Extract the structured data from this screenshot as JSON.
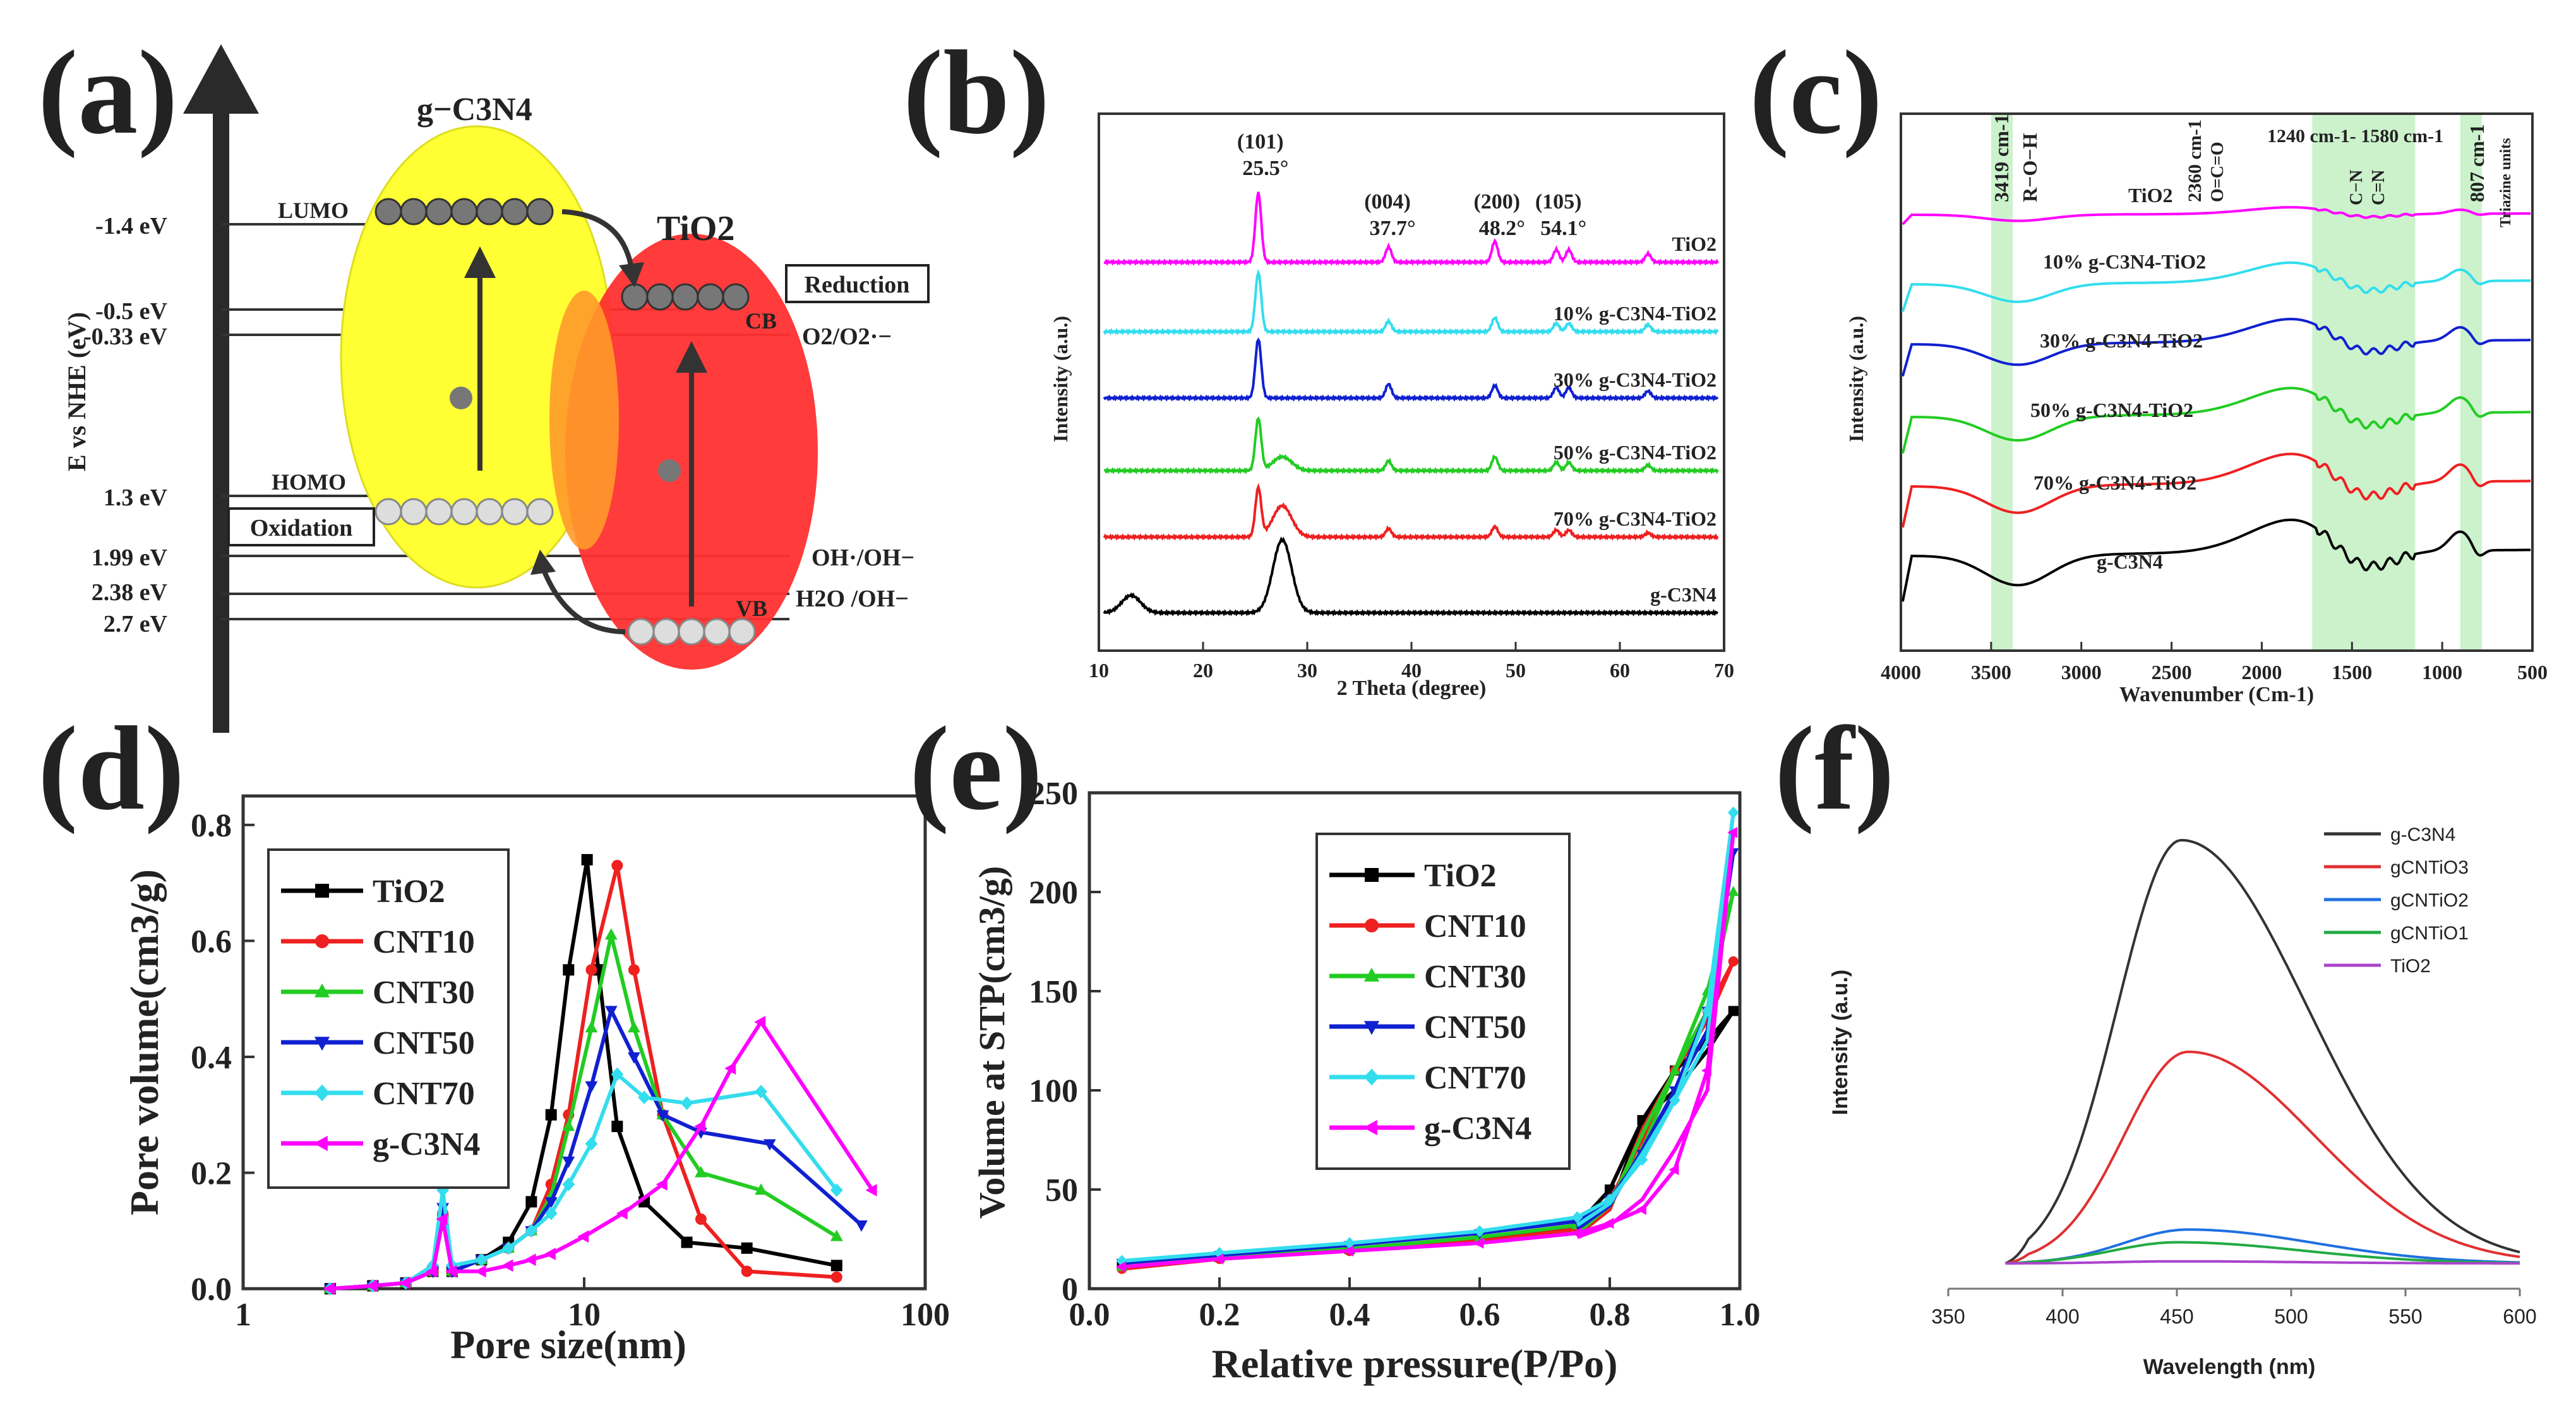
{
  "panels": {
    "a": {
      "letter": "(a)",
      "y_axis_label": "E vs NHE (eV)",
      "energy_levels": [
        {
          "label": "-1.4 eV",
          "value": -1.4
        },
        {
          "label": "-0.5 eV",
          "value": -0.5
        },
        {
          "label": "-0.33 eV",
          "value": -0.33
        },
        {
          "label": "1.3 eV",
          "value": 1.3
        },
        {
          "label": "1.99 eV",
          "value": 1.99
        },
        {
          "label": "2.38 eV",
          "value": 2.38
        },
        {
          "label": "2.7 eV",
          "value": 2.7
        }
      ],
      "gcn_label": "g−C3N4",
      "tio2_label": "TiO2",
      "lumo_label": "LUMO",
      "homo_label": "HOMO",
      "cb_label": "CB",
      "vb_label": "VB",
      "reduction_label": "Reduction",
      "oxidation_label": "Oxidation",
      "o2_label": "O2/O2·−",
      "oh_label": "OH·/OH−",
      "h2o_label": "H2O /OH−",
      "colors": {
        "gcn": "#ffff33",
        "tio2": "#ff3030",
        "axis": "#333333"
      }
    },
    "b": {
      "letter": "(b)",
      "chart_data": {
        "type": "line",
        "title": "",
        "xlabel": "2 Theta (degree)",
        "ylabel": "Intensity (a.u.)",
        "xlim": [
          10,
          70
        ],
        "xticks": [
          10,
          20,
          30,
          40,
          50,
          60,
          70
        ],
        "series": [
          {
            "name": "TiO2",
            "label": "TiO2",
            "color": "#ff00ff",
            "peaks": [
              [
                25.3,
                1.0
              ],
              [
                37.8,
                0.22
              ],
              [
                48.0,
                0.3
              ],
              [
                53.9,
                0.18
              ],
              [
                55.1,
                0.18
              ],
              [
                62.7,
                0.12
              ]
            ]
          },
          {
            "name": "10% g-C3N4-TiO2",
            "label": "10% g-C3N4-TiO2",
            "color": "#33ddee",
            "peaks": [
              [
                25.3,
                0.85
              ],
              [
                37.8,
                0.15
              ],
              [
                48.0,
                0.2
              ],
              [
                53.9,
                0.12
              ],
              [
                55.1,
                0.12
              ],
              [
                62.7,
                0.1
              ]
            ]
          },
          {
            "name": "30% g-C3N4-TiO2",
            "label": "30% g-C3N4-TiO2",
            "color": "#1020d0",
            "peaks": [
              [
                25.3,
                0.85
              ],
              [
                37.8,
                0.2
              ],
              [
                48.0,
                0.18
              ],
              [
                53.9,
                0.15
              ],
              [
                55.1,
                0.15
              ],
              [
                62.7,
                0.1
              ]
            ]
          },
          {
            "name": "50% g-C3N4-TiO2",
            "label": "50% g-C3N4-TiO2",
            "color": "#22cc22",
            "peaks": [
              [
                25.3,
                0.75
              ],
              [
                27.6,
                0.2
              ],
              [
                37.8,
                0.14
              ],
              [
                48.0,
                0.2
              ],
              [
                53.9,
                0.12
              ],
              [
                55.1,
                0.12
              ],
              [
                62.7,
                0.08
              ]
            ]
          },
          {
            "name": "70% g-C3N4-TiO2",
            "label": "70% g-C3N4-TiO2",
            "color": "#ee2020",
            "peaks": [
              [
                25.3,
                0.7
              ],
              [
                27.6,
                0.45
              ],
              [
                37.8,
                0.12
              ],
              [
                48.0,
                0.15
              ],
              [
                53.9,
                0.1
              ],
              [
                55.1,
                0.1
              ],
              [
                62.7,
                0.06
              ]
            ]
          },
          {
            "name": "g-C3N4",
            "label": "g-C3N4",
            "color": "#000000",
            "peaks": [
              [
                13.1,
                0.25
              ],
              [
                27.6,
                1.05
              ]
            ]
          }
        ],
        "peak_labels": [
          {
            "hkl": "(101)",
            "angle": "25.5°",
            "x": 25.5
          },
          {
            "hkl": "(004)",
            "angle": "37.7°",
            "x": 37.7
          },
          {
            "hkl": "(200)",
            "angle": "48.2°",
            "x": 48.2
          },
          {
            "hkl": "(105)",
            "angle": "54.1°",
            "x": 54.1
          }
        ]
      }
    },
    "c": {
      "letter": "(c)",
      "chart_data": {
        "type": "line",
        "xlabel": "Wavenumber (Cm-1)",
        "ylabel": "Intensity (a.u.)",
        "xlim": [
          4000,
          500
        ],
        "xticks": [
          4000,
          3500,
          3000,
          2500,
          2000,
          1500,
          1000,
          500
        ],
        "series": [
          {
            "name": "TiO2",
            "label": "TiO2",
            "color": "#ff00ff"
          },
          {
            "name": "10% g-C3N4-TiO2",
            "label": "10% g-C3N4-TiO2",
            "color": "#33ddee"
          },
          {
            "name": "30% g-C3N4-TiO2",
            "label": "30% g-C3N4-TiO2",
            "color": "#1020d0"
          },
          {
            "name": "50% g-C3N4-TiO2",
            "label": "50% g-C3N4-TiO2",
            "color": "#22cc22"
          },
          {
            "name": "70% g-C3N4-TiO2",
            "label": "70% g-C3N4-TiO2",
            "color": "#ee2020"
          },
          {
            "name": "g-C3N4",
            "label": "g-C3N4",
            "color": "#000000"
          }
        ],
        "bands": [
          {
            "label": "3419 cm-1",
            "from": 3500,
            "to": 3380
          },
          {
            "label": "1240 cm-1- 1580 cm-1",
            "from": 1720,
            "to": 1150
          },
          {
            "label": "807 cm-1",
            "from": 900,
            "to": 780
          }
        ],
        "annotations": [
          "R−O−H",
          "2360 cm-1",
          "O=C=O",
          "C−N",
          "C=N",
          "Triazine units"
        ]
      }
    },
    "d": {
      "letter": "(d)",
      "chart_data": {
        "type": "line",
        "xscale": "log",
        "xlabel": "Pore size(nm)",
        "ylabel": "Pore volume(cm3/g)",
        "xlim": [
          1,
          100
        ],
        "ylim": [
          0,
          0.85
        ],
        "xticks": [
          1,
          10,
          100
        ],
        "yticks": [
          0.0,
          0.2,
          0.4,
          0.6,
          0.8
        ],
        "legend_position": "top-left",
        "series": [
          {
            "name": "TiO2",
            "color": "#000000",
            "marker": "square",
            "x": [
              1.8,
              2.4,
              3.0,
              3.6,
              3.85,
              4.1,
              5.0,
              6.0,
              7.0,
              8.0,
              9.0,
              10.2,
              11.0,
              12.5,
              15.0,
              20.0,
              30.0,
              55.0
            ],
            "y": [
              0.0,
              0.005,
              0.01,
              0.03,
              0.12,
              0.03,
              0.05,
              0.08,
              0.15,
              0.3,
              0.55,
              0.74,
              0.55,
              0.28,
              0.15,
              0.08,
              0.07,
              0.04
            ]
          },
          {
            "name": "CNT10",
            "color": "#ee2020",
            "marker": "circle",
            "x": [
              1.8,
              2.4,
              3.0,
              3.6,
              3.85,
              4.1,
              5.0,
              6.0,
              7.0,
              8.0,
              9.0,
              10.5,
              12.5,
              14.0,
              17.0,
              22.0,
              30.0,
              55.0
            ],
            "y": [
              0.0,
              0.005,
              0.01,
              0.03,
              0.13,
              0.03,
              0.05,
              0.07,
              0.1,
              0.18,
              0.3,
              0.55,
              0.73,
              0.55,
              0.3,
              0.12,
              0.03,
              0.02
            ]
          },
          {
            "name": "CNT30",
            "color": "#22cc22",
            "marker": "triangle-up",
            "x": [
              1.8,
              2.4,
              3.0,
              3.6,
              3.85,
              4.1,
              5.0,
              6.0,
              7.0,
              8.0,
              9.0,
              10.5,
              12.0,
              14.0,
              17.0,
              22.0,
              33.0,
              55.0
            ],
            "y": [
              0.0,
              0.005,
              0.01,
              0.03,
              0.13,
              0.03,
              0.05,
              0.07,
              0.1,
              0.16,
              0.28,
              0.45,
              0.61,
              0.45,
              0.3,
              0.2,
              0.17,
              0.09
            ]
          },
          {
            "name": "CNT50",
            "color": "#1020d0",
            "marker": "triangle-down",
            "x": [
              1.8,
              2.4,
              3.0,
              3.6,
              3.85,
              4.1,
              5.0,
              6.0,
              7.0,
              8.0,
              9.0,
              10.5,
              12.0,
              14.0,
              17.0,
              22.0,
              35.0,
              65.0
            ],
            "y": [
              0.0,
              0.005,
              0.01,
              0.03,
              0.14,
              0.03,
              0.05,
              0.07,
              0.1,
              0.15,
              0.22,
              0.35,
              0.48,
              0.4,
              0.3,
              0.27,
              0.25,
              0.11
            ]
          },
          {
            "name": "CNT70",
            "color": "#33ddee",
            "marker": "diamond",
            "x": [
              1.8,
              2.4,
              3.0,
              3.6,
              3.85,
              4.1,
              5.0,
              6.0,
              7.0,
              8.0,
              9.0,
              10.5,
              12.5,
              15.0,
              20.0,
              33.0,
              55.0
            ],
            "y": [
              0.0,
              0.005,
              0.01,
              0.04,
              0.17,
              0.04,
              0.05,
              0.07,
              0.1,
              0.13,
              0.18,
              0.25,
              0.37,
              0.33,
              0.32,
              0.34,
              0.17
            ]
          },
          {
            "name": "g-C3N4",
            "color": "#ff00ff",
            "marker": "triangle-left",
            "x": [
              1.8,
              2.4,
              3.0,
              3.6,
              3.85,
              4.1,
              5.0,
              6.0,
              7.0,
              8.0,
              10.0,
              13.0,
              17.0,
              22.0,
              27.0,
              33.0,
              70.0
            ],
            "y": [
              0.0,
              0.005,
              0.01,
              0.03,
              0.12,
              0.03,
              0.03,
              0.04,
              0.05,
              0.06,
              0.09,
              0.13,
              0.18,
              0.28,
              0.38,
              0.46,
              0.17
            ]
          }
        ]
      }
    },
    "e": {
      "letter": "(e)",
      "chart_data": {
        "type": "line",
        "xlabel": "Relative pressure(P/Po)",
        "ylabel": "Volume at STP(cm3/g)",
        "xlim": [
          0.0,
          1.0
        ],
        "ylim": [
          0,
          250
        ],
        "xticks": [
          0.0,
          0.2,
          0.4,
          0.6,
          0.8,
          1.0
        ],
        "yticks": [
          0,
          50,
          100,
          150,
          200,
          250
        ],
        "legend_position": "top-center",
        "series": [
          {
            "name": "TiO2",
            "color": "#000000",
            "marker": "square",
            "x": [
              0.05,
              0.2,
              0.4,
              0.6,
              0.75,
              0.8,
              0.85,
              0.9,
              0.95,
              0.99
            ],
            "y": [
              12,
              16,
              20,
              25,
              32,
              50,
              85,
              110,
              125,
              140
            ],
            "desorption": [
              120,
              100,
              85,
              40,
              28
            ]
          },
          {
            "name": "CNT10",
            "color": "#ee2020",
            "marker": "circle",
            "x": [
              0.05,
              0.2,
              0.4,
              0.6,
              0.75,
              0.8,
              0.85,
              0.9,
              0.95,
              0.99
            ],
            "y": [
              10,
              15,
              19,
              24,
              30,
              45,
              75,
              110,
              140,
              165
            ],
            "desorption": [
              135,
              110,
              80,
              40,
              27
            ]
          },
          {
            "name": "CNT30",
            "color": "#22cc22",
            "marker": "triangle-up",
            "x": [
              0.05,
              0.2,
              0.4,
              0.6,
              0.75,
              0.8,
              0.85,
              0.9,
              0.95,
              0.99
            ],
            "y": [
              11,
              16,
              20,
              26,
              32,
              45,
              70,
              110,
              150,
              200
            ],
            "desorption": [
              140,
              110,
              78,
              42,
              28
            ]
          },
          {
            "name": "CNT50",
            "color": "#1020d0",
            "marker": "triangle-down",
            "x": [
              0.05,
              0.2,
              0.4,
              0.6,
              0.75,
              0.8,
              0.85,
              0.9,
              0.95,
              0.99
            ],
            "y": [
              13,
              17,
              22,
              28,
              34,
              45,
              68,
              100,
              140,
              220
            ],
            "desorption": [
              130,
              100,
              70,
              42,
              30
            ]
          },
          {
            "name": "CNT70",
            "color": "#33ddee",
            "marker": "diamond",
            "x": [
              0.05,
              0.2,
              0.4,
              0.6,
              0.75,
              0.8,
              0.85,
              0.9,
              0.95,
              0.99
            ],
            "y": [
              14,
              18,
              23,
              29,
              36,
              45,
              65,
              95,
              140,
              240
            ],
            "desorption": [
              125,
              95,
              68,
              43,
              32
            ]
          },
          {
            "name": "g-C3N4",
            "color": "#ff00ff",
            "marker": "triangle-left",
            "x": [
              0.05,
              0.2,
              0.4,
              0.6,
              0.75,
              0.8,
              0.85,
              0.9,
              0.95,
              0.99
            ],
            "y": [
              11,
              15,
              19,
              23,
              28,
              33,
              40,
              60,
              110,
              230
            ],
            "desorption": [
              100,
              70,
              45,
              32,
              26
            ]
          }
        ]
      }
    },
    "f": {
      "letter": "(f)",
      "chart_data": {
        "type": "line",
        "xlabel": "Wavelength (nm)",
        "ylabel": "Intensity (a.u.)",
        "xlim": [
          350,
          600
        ],
        "xticks": [
          350,
          400,
          450,
          500,
          550,
          600
        ],
        "legend_position": "top-right",
        "series": [
          {
            "name": "g-C3N4",
            "color": "#333333",
            "peak_x": 452,
            "peak_y": 1.0
          },
          {
            "name": "gCNTiO3",
            "color": "#e03030",
            "peak_x": 455,
            "peak_y": 0.5
          },
          {
            "name": "gCNTiO2",
            "color": "#2070e0",
            "peak_x": 455,
            "peak_y": 0.08
          },
          {
            "name": "gCNTiO1",
            "color": "#22aa44",
            "peak_x": 450,
            "peak_y": 0.05
          },
          {
            "name": "TiO2",
            "color": "#aa44cc",
            "peak_x": 450,
            "peak_y": 0.005
          }
        ]
      }
    }
  }
}
